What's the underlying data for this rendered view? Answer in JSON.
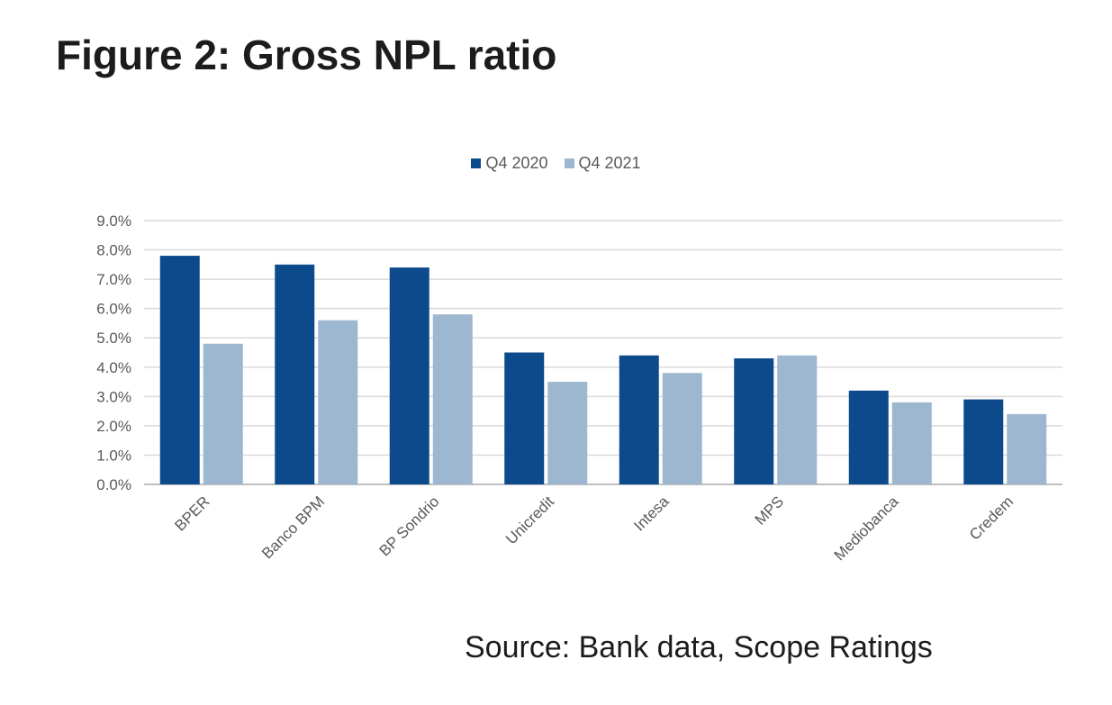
{
  "figure": {
    "title": "Figure 2: Gross NPL ratio",
    "source": "Source: Bank data, Scope Ratings"
  },
  "chart_data": {
    "type": "bar",
    "categories": [
      "BPER",
      "Banco BPM",
      "BP Sondrio",
      "Unicredit",
      "Intesa",
      "MPS",
      "Mediobanca",
      "Credem"
    ],
    "series": [
      {
        "name": "Q4 2020",
        "color": "#0d4a8c",
        "values": [
          7.8,
          7.5,
          7.4,
          4.5,
          4.4,
          4.3,
          3.2,
          2.9
        ]
      },
      {
        "name": "Q4 2021",
        "color": "#9db7d1",
        "values": [
          4.8,
          5.6,
          5.8,
          3.5,
          3.8,
          4.4,
          2.8,
          2.4
        ]
      }
    ],
    "ylim": [
      0,
      9
    ],
    "yticks": [
      "0.0%",
      "1.0%",
      "2.0%",
      "3.0%",
      "4.0%",
      "5.0%",
      "6.0%",
      "7.0%",
      "8.0%",
      "9.0%"
    ],
    "ytick_values": [
      0,
      1,
      2,
      3,
      4,
      5,
      6,
      7,
      8,
      9
    ],
    "grid": true,
    "legend": "top-center"
  }
}
